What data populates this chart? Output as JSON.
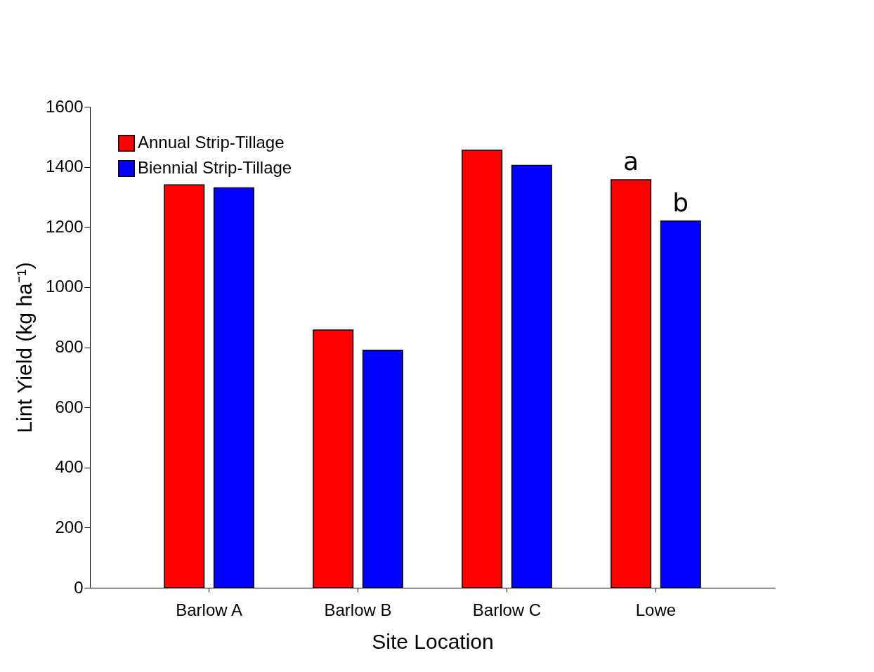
{
  "chart_data": {
    "type": "bar",
    "xlabel": "Site Location",
    "ylabel": "Lint Yield (kg ha⁻¹)",
    "categories": [
      "Barlow A",
      "Barlow B",
      "Barlow C",
      "Lowe"
    ],
    "series": [
      {
        "name": "Annual Strip-Tillage",
        "color": "#ff0000",
        "values": [
          1340,
          857,
          1455,
          1357
        ]
      },
      {
        "name": "Biennial Strip-Tillage",
        "color": "#0000ff",
        "values": [
          1330,
          790,
          1405,
          1220
        ]
      }
    ],
    "ylim": [
      0,
      1600
    ],
    "yticks": [
      0,
      200,
      400,
      600,
      800,
      1000,
      1200,
      1400,
      1600
    ],
    "annotations": [
      "a",
      "b"
    ],
    "grid": false,
    "legend": "top left"
  }
}
